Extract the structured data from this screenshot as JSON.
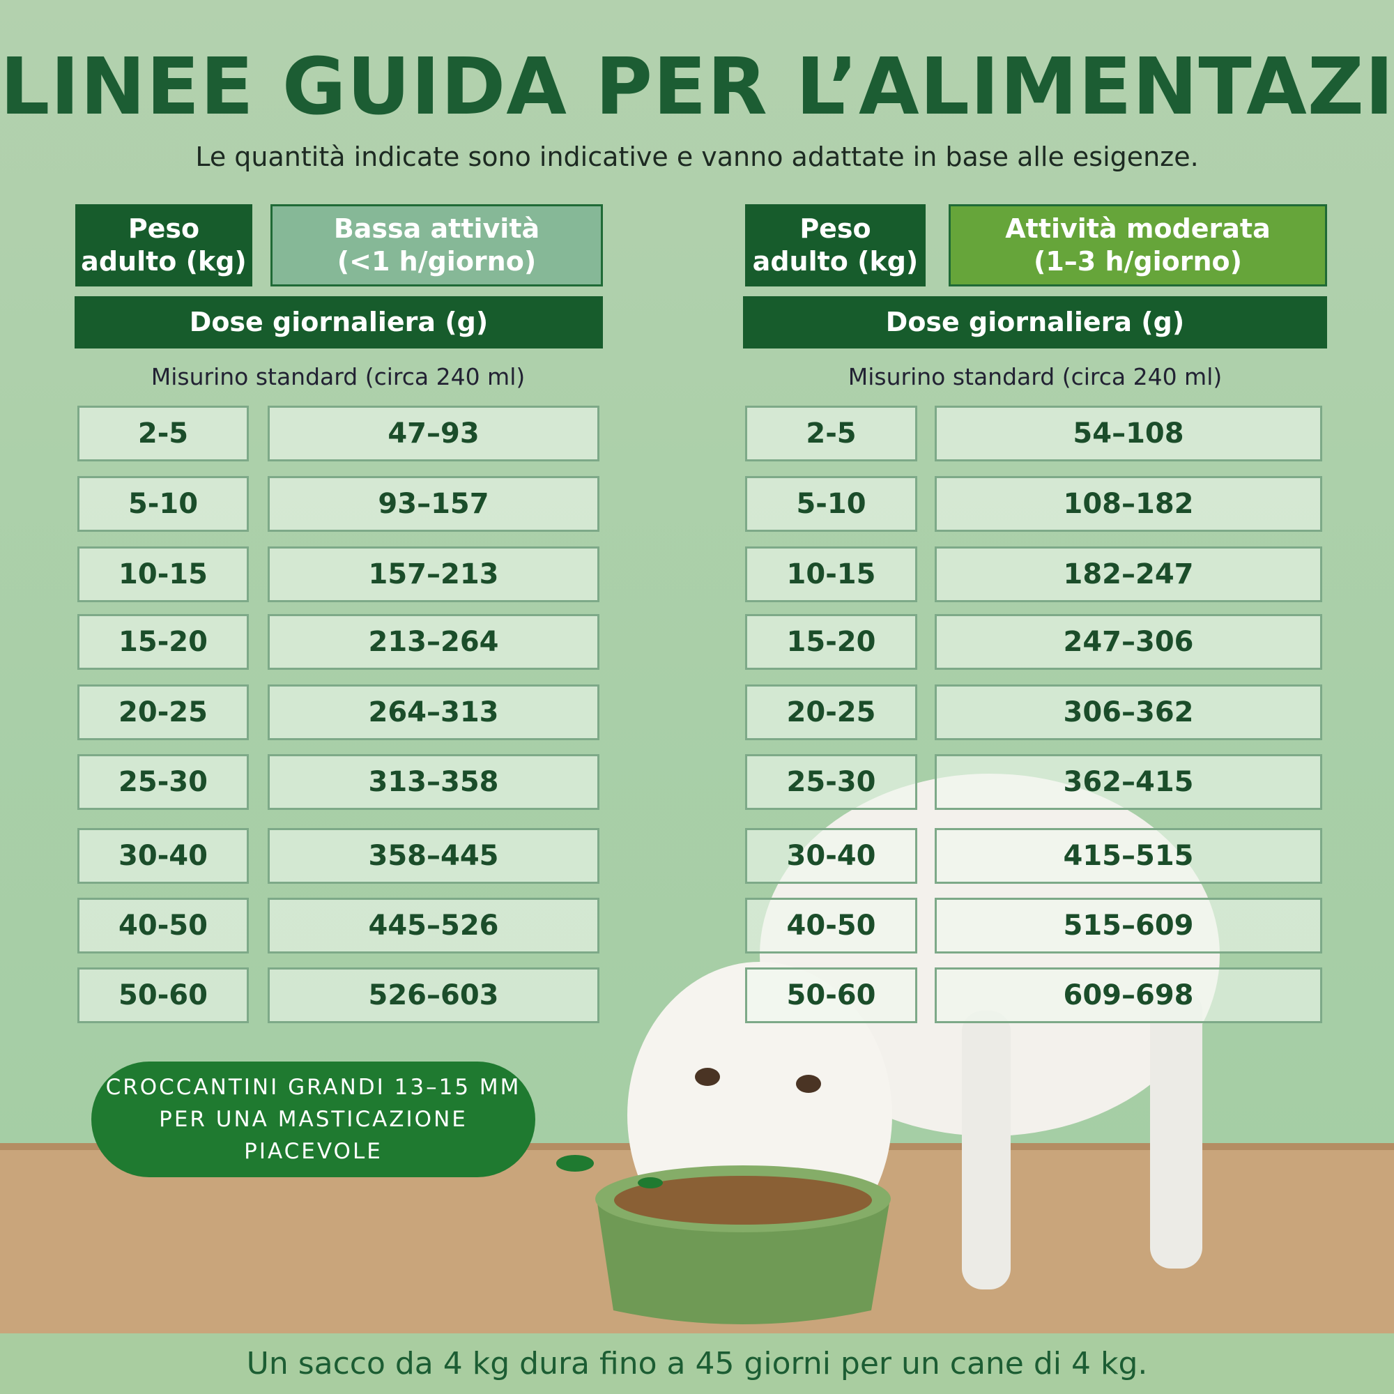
{
  "title": "LINEE GUIDA PER L’ALIMENTAZIONE",
  "subtitle": "Le quantità indicate sono indicative e vanno adattate in base alle esigenze.",
  "tables": [
    {
      "weight_header": "Peso\nadulto (kg)",
      "activity_header": "Bassa attività\n(<1 h/giorno)",
      "dose_header": "Dose giornaliera (g)",
      "note": "Misurino standard (circa 240 ml)",
      "rows": [
        [
          "2-5",
          "47–93"
        ],
        [
          "5-10",
          "93–157"
        ],
        [
          "10-15",
          "157–213"
        ],
        [
          "15-20",
          "213–264"
        ],
        [
          "20-25",
          "264–313"
        ],
        [
          "25-30",
          "313–358"
        ],
        [
          "30-40",
          "358–445"
        ],
        [
          "40-50",
          "445–526"
        ],
        [
          "50-60",
          "526–603"
        ]
      ]
    },
    {
      "weight_header": "Peso\nadulto (kg)",
      "activity_header": "Attività moderata\n(1–3 h/giorno)",
      "dose_header": "Dose giornaliera (g)",
      "note": "Misurino standard (circa 240 ml)",
      "rows": [
        [
          "2-5",
          "54–108"
        ],
        [
          "5-10",
          "108–182"
        ],
        [
          "10-15",
          "182–247"
        ],
        [
          "15-20",
          "247–306"
        ],
        [
          "20-25",
          "306–362"
        ],
        [
          "25-30",
          "362–415"
        ],
        [
          "30-40",
          "415–515"
        ],
        [
          "40-50",
          "515–609"
        ],
        [
          "50-60",
          "609–698"
        ]
      ]
    }
  ],
  "callout": "CROCCANTINI GRANDI 13–15 MM\nPER UNA MASTICAZIONE\nPIACEVOLE",
  "footer": "Un sacco da 4 kg dura fino a 45 giorni per un cane di 4 kg."
}
